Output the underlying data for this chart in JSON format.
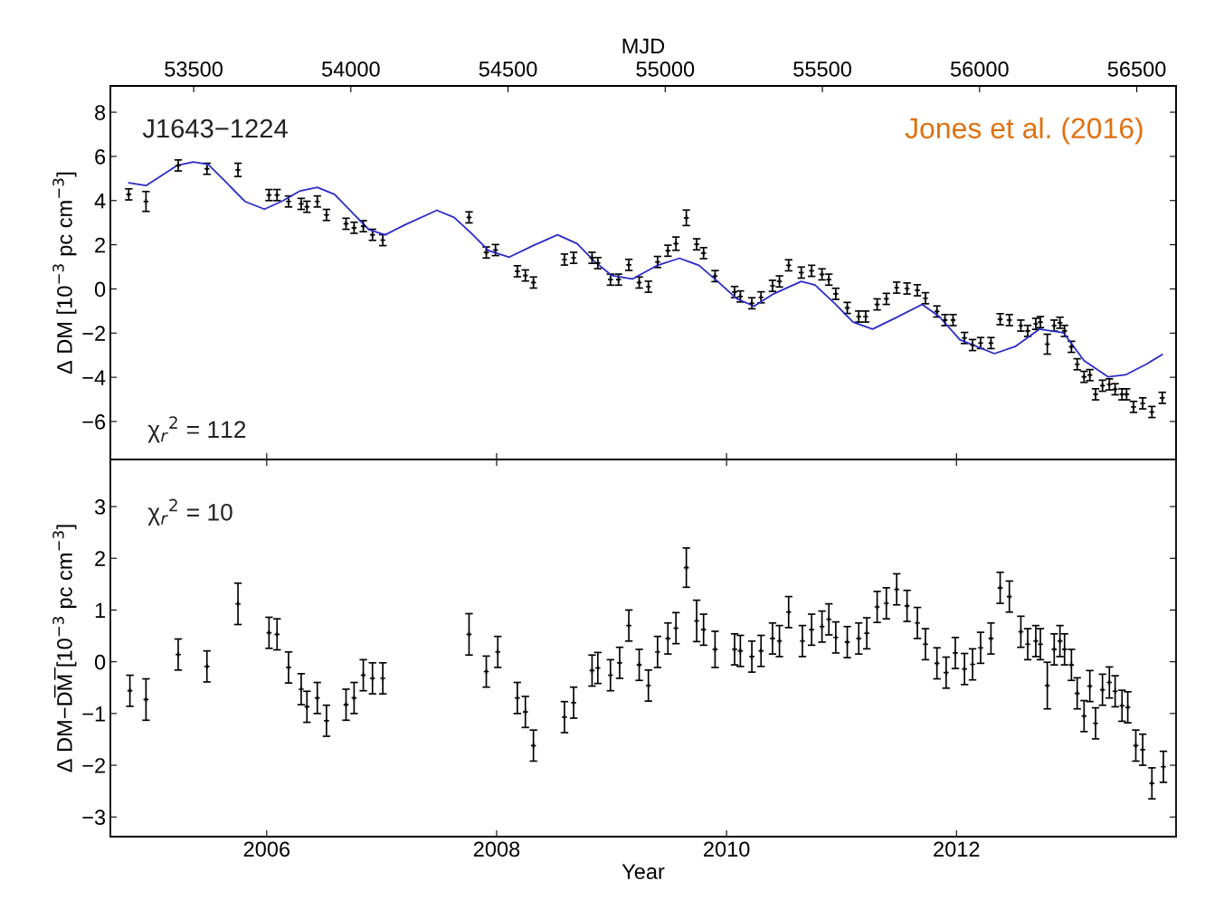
{
  "chart_data": [
    {
      "type": "scatter",
      "ylabel": "Δ DM [10$^{−3}$ pc cm$^{−3}$]",
      "x2label": "MJD",
      "annotations": [
        "J1643−1224",
        "χ$_{r}$$^{2}$ = 112",
        "Jones et al. (2016)"
      ],
      "xlim": [
        2004.64,
        2013.91
      ],
      "xticks": [
        2006,
        2008,
        2010,
        2012
      ],
      "x2lim": [
        53235,
        56625
      ],
      "x2ticks": [
        53500,
        54000,
        54500,
        55000,
        55500,
        56000,
        56500
      ],
      "ylim": [
        -7.72,
        9.19
      ],
      "yticks": [
        -6,
        -4,
        -2,
        0,
        2,
        4,
        6,
        8
      ],
      "tick_labels": "y",
      "grid": false,
      "legend": false,
      "marker": "cross",
      "series": [
        {
          "color": "#000000",
          "x": [
            2004.8,
            2004.95,
            2005.23,
            2005.48,
            2005.75,
            2006.02,
            2006.09,
            2006.19,
            2006.3,
            2006.35,
            2006.44,
            2006.52,
            2006.69,
            2006.76,
            2006.84,
            2006.92,
            2007.01,
            2007.76,
            2007.91,
            2007.99,
            2008.18,
            2008.25,
            2008.32,
            2008.59,
            2008.67,
            2008.83,
            2008.88,
            2008.99,
            2009.06,
            2009.15,
            2009.24,
            2009.32,
            2009.4,
            2009.49,
            2009.56,
            2009.65,
            2009.74,
            2009.8,
            2009.9,
            2010.07,
            2010.12,
            2010.22,
            2010.3,
            2010.4,
            2010.46,
            2010.54,
            2010.65,
            2010.74,
            2010.83,
            2010.89,
            2010.95,
            2011.05,
            2011.15,
            2011.21,
            2011.31,
            2011.39,
            2011.48,
            2011.57,
            2011.66,
            2011.73,
            2011.83,
            2011.9,
            2011.97,
            2012.07,
            2012.14,
            2012.21,
            2012.3,
            2012.38,
            2012.46,
            2012.56,
            2012.62,
            2012.69,
            2012.73,
            2012.79,
            2012.85,
            2012.9,
            2012.94,
            2013.0,
            2013.05,
            2013.11,
            2013.16,
            2013.21,
            2013.27,
            2013.33,
            2013.38,
            2013.44,
            2013.48,
            2013.54,
            2013.62,
            2013.7,
            2013.79
          ],
          "values": [
            4.28,
            3.96,
            5.59,
            5.44,
            5.39,
            4.25,
            4.25,
            3.96,
            3.85,
            3.72,
            3.96,
            3.35,
            2.95,
            2.77,
            2.84,
            2.45,
            2.21,
            3.24,
            1.65,
            1.76,
            0.8,
            0.61,
            0.29,
            1.33,
            1.41,
            1.41,
            1.17,
            0.42,
            0.42,
            1.09,
            0.29,
            0.1,
            1.22,
            1.73,
            2.05,
            3.22,
            2.02,
            1.62,
            0.58,
            -0.14,
            -0.34,
            -0.65,
            -0.38,
            0.14,
            0.34,
            1.07,
            0.74,
            0.82,
            0.66,
            0.42,
            -0.22,
            -0.86,
            -1.25,
            -1.25,
            -0.7,
            -0.45,
            0.06,
            0.02,
            -0.06,
            -0.42,
            -1.02,
            -1.41,
            -1.41,
            -2.22,
            -2.54,
            -2.45,
            -2.45,
            -1.37,
            -1.41,
            -1.66,
            -1.9,
            -1.58,
            -1.5,
            -2.5,
            -1.66,
            -1.53,
            -1.9,
            -2.62,
            -3.41,
            -3.98,
            -3.9,
            -4.77,
            -4.38,
            -4.32,
            -4.54,
            -4.77,
            -4.77,
            -5.34,
            -5.18,
            -5.57,
            -4.93
          ],
          "errors": [
            0.25,
            0.45,
            0.25,
            0.25,
            0.3,
            0.25,
            0.25,
            0.25,
            0.25,
            0.25,
            0.25,
            0.25,
            0.25,
            0.25,
            0.25,
            0.25,
            0.25,
            0.25,
            0.25,
            0.25,
            0.25,
            0.25,
            0.25,
            0.25,
            0.25,
            0.25,
            0.25,
            0.25,
            0.25,
            0.25,
            0.25,
            0.25,
            0.25,
            0.25,
            0.3,
            0.35,
            0.25,
            0.25,
            0.25,
            0.25,
            0.25,
            0.25,
            0.25,
            0.25,
            0.25,
            0.25,
            0.25,
            0.25,
            0.25,
            0.25,
            0.25,
            0.25,
            0.25,
            0.25,
            0.25,
            0.25,
            0.25,
            0.25,
            0.25,
            0.25,
            0.25,
            0.25,
            0.25,
            0.25,
            0.25,
            0.25,
            0.25,
            0.25,
            0.25,
            0.25,
            0.25,
            0.25,
            0.25,
            0.45,
            0.25,
            0.25,
            0.25,
            0.25,
            0.25,
            0.25,
            0.25,
            0.25,
            0.25,
            0.25,
            0.25,
            0.25,
            0.25,
            0.25,
            0.25,
            0.25,
            0.25
          ]
        },
        {
          "type": "line",
          "color": "#2b2bc8",
          "line_style": "solid",
          "marker": "none",
          "x": [
            2004.8,
            2004.95,
            2005.22,
            2005.36,
            2005.49,
            2005.66,
            2005.81,
            2005.98,
            2006.14,
            2006.29,
            2006.44,
            2006.59,
            2006.77,
            2006.89,
            2007.03,
            2007.21,
            2007.48,
            2007.63,
            2007.78,
            2007.93,
            2008.11,
            2008.32,
            2008.53,
            2008.7,
            2008.85,
            2009.0,
            2009.18,
            2009.4,
            2009.59,
            2009.76,
            2009.94,
            2010.09,
            2010.24,
            2010.41,
            2010.65,
            2010.77,
            2010.95,
            2011.1,
            2011.27,
            2011.46,
            2011.7,
            2011.85,
            2012.03,
            2012.33,
            2012.51,
            2012.72,
            2012.93,
            2013.11,
            2013.32,
            2013.47,
            2013.65,
            2013.79
          ],
          "values": [
            4.8,
            4.68,
            5.59,
            5.75,
            5.64,
            4.76,
            3.96,
            3.61,
            3.99,
            4.44,
            4.6,
            4.28,
            3.32,
            2.68,
            2.45,
            2.92,
            3.56,
            3.24,
            2.52,
            1.73,
            1.44,
            1.97,
            2.45,
            2.05,
            1.25,
            0.61,
            0.45,
            1.07,
            1.39,
            1.07,
            0.26,
            -0.45,
            -0.78,
            -0.22,
            0.34,
            0.18,
            -0.7,
            -1.5,
            -1.82,
            -1.34,
            -0.7,
            -1.25,
            -2.3,
            -2.93,
            -2.61,
            -1.82,
            -1.98,
            -3.25,
            -3.98,
            -3.89,
            -3.41,
            -2.97
          ]
        }
      ]
    },
    {
      "type": "scatter",
      "ylabel": "Δ DM−D̅M̅ [10$^{−3}$ pc cm$^{−3}$]",
      "xlabel": "Year",
      "annotations": [
        "χ$_{r}$$^{2}$ = 10"
      ],
      "xlim": [
        2004.64,
        2013.91
      ],
      "xticks": [
        2006,
        2008,
        2010,
        2012
      ],
      "ylim": [
        -3.38,
        3.91
      ],
      "yticks": [
        -3,
        -2,
        -1,
        0,
        1,
        2,
        3
      ],
      "grid": false,
      "legend": false,
      "marker": "cross",
      "series": [
        {
          "color": "#000000",
          "x": [
            2004.81,
            2004.95,
            2005.23,
            2005.48,
            2005.75,
            2006.02,
            2006.09,
            2006.19,
            2006.3,
            2006.35,
            2006.44,
            2006.52,
            2006.69,
            2006.76,
            2006.84,
            2006.92,
            2007.01,
            2007.76,
            2007.91,
            2008.01,
            2008.18,
            2008.25,
            2008.32,
            2008.59,
            2008.67,
            2008.83,
            2008.88,
            2008.99,
            2009.07,
            2009.15,
            2009.24,
            2009.32,
            2009.4,
            2009.49,
            2009.56,
            2009.65,
            2009.74,
            2009.8,
            2009.9,
            2010.07,
            2010.12,
            2010.22,
            2010.3,
            2010.4,
            2010.46,
            2010.54,
            2010.66,
            2010.74,
            2010.83,
            2010.89,
            2010.95,
            2011.05,
            2011.15,
            2011.22,
            2011.31,
            2011.39,
            2011.48,
            2011.57,
            2011.66,
            2011.73,
            2011.83,
            2011.91,
            2011.99,
            2012.07,
            2012.14,
            2012.21,
            2012.3,
            2012.38,
            2012.46,
            2012.56,
            2012.62,
            2012.69,
            2012.73,
            2012.79,
            2012.85,
            2012.9,
            2012.94,
            2013.0,
            2013.05,
            2013.11,
            2013.16,
            2013.21,
            2013.27,
            2013.33,
            2013.38,
            2013.44,
            2013.49,
            2013.56,
            2013.62,
            2013.7,
            2013.8
          ],
          "values": [
            -0.56,
            -0.73,
            0.14,
            -0.09,
            1.12,
            0.56,
            0.53,
            -0.11,
            -0.53,
            -0.87,
            -0.7,
            -1.14,
            -0.83,
            -0.7,
            -0.26,
            -0.32,
            -0.32,
            0.53,
            -0.19,
            0.19,
            -0.7,
            -0.97,
            -1.62,
            -1.07,
            -0.79,
            -0.17,
            -0.12,
            -0.26,
            -0.02,
            0.7,
            -0.06,
            -0.46,
            0.19,
            0.45,
            0.65,
            1.82,
            0.79,
            0.62,
            0.24,
            0.24,
            0.21,
            0.1,
            0.21,
            0.45,
            0.4,
            0.96,
            0.4,
            0.62,
            0.68,
            0.82,
            0.47,
            0.38,
            0.45,
            0.55,
            1.06,
            1.13,
            1.4,
            1.08,
            0.75,
            0.34,
            -0.03,
            -0.21,
            0.17,
            -0.14,
            -0.05,
            0.27,
            0.45,
            1.43,
            1.26,
            0.58,
            0.34,
            0.4,
            0.34,
            -0.46,
            0.24,
            0.4,
            0.24,
            -0.06,
            -0.61,
            -1.05,
            -0.47,
            -1.19,
            -0.54,
            -0.4,
            -0.57,
            -0.85,
            -0.88,
            -1.62,
            -1.7,
            -2.35,
            -2.03
          ],
          "errors": [
            0.3,
            0.4,
            0.3,
            0.3,
            0.4,
            0.3,
            0.3,
            0.3,
            0.3,
            0.3,
            0.3,
            0.3,
            0.3,
            0.3,
            0.3,
            0.3,
            0.3,
            0.4,
            0.3,
            0.3,
            0.3,
            0.3,
            0.3,
            0.3,
            0.3,
            0.3,
            0.3,
            0.3,
            0.3,
            0.3,
            0.3,
            0.3,
            0.3,
            0.3,
            0.3,
            0.38,
            0.4,
            0.3,
            0.35,
            0.3,
            0.3,
            0.3,
            0.3,
            0.3,
            0.3,
            0.3,
            0.3,
            0.3,
            0.3,
            0.3,
            0.3,
            0.3,
            0.3,
            0.3,
            0.3,
            0.3,
            0.3,
            0.3,
            0.3,
            0.3,
            0.3,
            0.3,
            0.3,
            0.3,
            0.3,
            0.3,
            0.3,
            0.3,
            0.3,
            0.3,
            0.3,
            0.3,
            0.3,
            0.45,
            0.3,
            0.3,
            0.3,
            0.3,
            0.3,
            0.3,
            0.3,
            0.3,
            0.3,
            0.3,
            0.3,
            0.3,
            0.3,
            0.3,
            0.3,
            0.3,
            0.3
          ]
        }
      ]
    }
  ]
}
